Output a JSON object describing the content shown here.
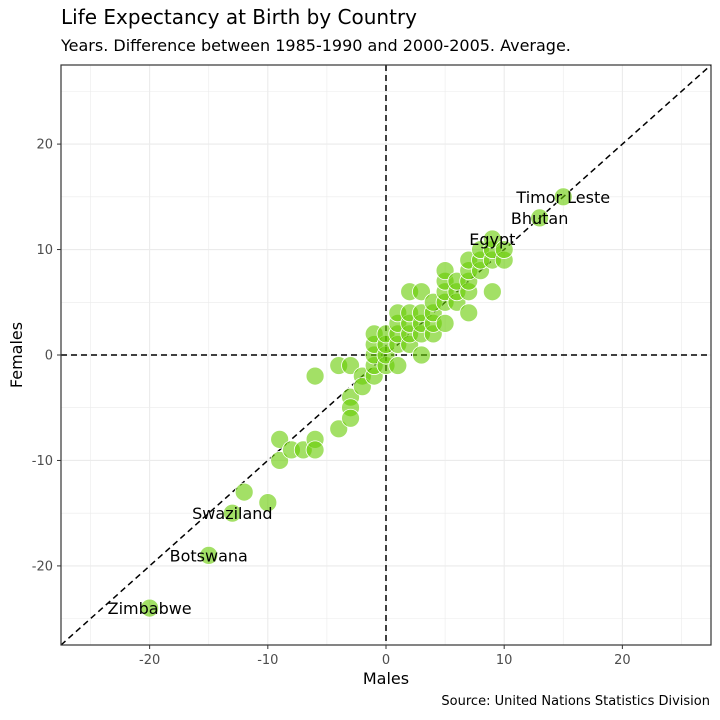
{
  "title": "Life Expectancy at Birth by Country",
  "subtitle": "Years. Difference between 1985-1990 and 2000-2005. Average.",
  "caption": "Source: United Nations Statistics Division",
  "chart_data": {
    "type": "scatter",
    "xlabel": "Males",
    "ylabel": "Females",
    "xlim": [
      -27.5,
      27.5
    ],
    "ylim": [
      -27.5,
      27.5
    ],
    "xticks": [
      -20,
      -10,
      0,
      10,
      20
    ],
    "yticks": [
      -20,
      -10,
      0,
      10,
      20
    ],
    "x_tick_labels": [
      "-20",
      "-10",
      "0",
      "10",
      "20"
    ],
    "y_tick_labels": [
      "-20",
      "-10",
      "0",
      "10",
      "20"
    ],
    "grid": true,
    "reference_lines": {
      "diagonal": "y = x",
      "vertical": 0,
      "horizontal": 0,
      "style": "dashed"
    },
    "colors": {
      "point": "#66CC00",
      "reference_line": "#000000",
      "grid": "#ebebeb",
      "panel_border": "#333333"
    },
    "points": [
      [
        -20,
        -24
      ],
      [
        -15,
        -19
      ],
      [
        -13,
        -15
      ],
      [
        -12,
        -13
      ],
      [
        -10,
        -14
      ],
      [
        -9,
        -8
      ],
      [
        -9,
        -10
      ],
      [
        -8,
        -9
      ],
      [
        -7,
        -9
      ],
      [
        -6,
        -8
      ],
      [
        -6,
        -9
      ],
      [
        -6,
        -2
      ],
      [
        -4,
        -7
      ],
      [
        -4,
        -1
      ],
      [
        -3,
        -1
      ],
      [
        -3,
        -4
      ],
      [
        -3,
        -5
      ],
      [
        -3,
        -6
      ],
      [
        -2,
        -2
      ],
      [
        -2,
        -3
      ],
      [
        -1,
        -2
      ],
      [
        -1,
        -1
      ],
      [
        -1,
        0
      ],
      [
        -1,
        1
      ],
      [
        -1,
        2
      ],
      [
        0,
        -1
      ],
      [
        0,
        0
      ],
      [
        0,
        1
      ],
      [
        0,
        2
      ],
      [
        1,
        -1
      ],
      [
        1,
        1
      ],
      [
        1,
        2
      ],
      [
        1,
        3
      ],
      [
        1,
        4
      ],
      [
        2,
        1
      ],
      [
        2,
        2
      ],
      [
        2,
        3
      ],
      [
        2,
        4
      ],
      [
        2,
        6
      ],
      [
        3,
        0
      ],
      [
        3,
        2
      ],
      [
        3,
        3
      ],
      [
        3,
        4
      ],
      [
        3,
        6
      ],
      [
        4,
        2
      ],
      [
        4,
        3
      ],
      [
        4,
        4
      ],
      [
        4,
        5
      ],
      [
        5,
        3
      ],
      [
        5,
        5
      ],
      [
        5,
        6
      ],
      [
        5,
        7
      ],
      [
        5,
        8
      ],
      [
        6,
        5
      ],
      [
        6,
        6
      ],
      [
        6,
        7
      ],
      [
        7,
        4
      ],
      [
        7,
        6
      ],
      [
        7,
        7
      ],
      [
        7,
        8
      ],
      [
        7,
        9
      ],
      [
        8,
        8
      ],
      [
        8,
        9
      ],
      [
        8,
        10
      ],
      [
        9,
        6
      ],
      [
        9,
        9
      ],
      [
        9,
        10
      ],
      [
        9,
        11
      ],
      [
        10,
        9
      ],
      [
        10,
        10
      ],
      [
        13,
        13
      ],
      [
        15,
        15
      ]
    ],
    "labels": [
      {
        "text": "Timor Leste",
        "x": 15,
        "y": 15
      },
      {
        "text": "Bhutan",
        "x": 13,
        "y": 13
      },
      {
        "text": "Egypt",
        "x": 9,
        "y": 11
      },
      {
        "text": "Swaziland",
        "x": -13,
        "y": -15
      },
      {
        "text": "Botswana",
        "x": -15,
        "y": -19
      },
      {
        "text": "Zimbabwe",
        "x": -20,
        "y": -24
      }
    ]
  }
}
